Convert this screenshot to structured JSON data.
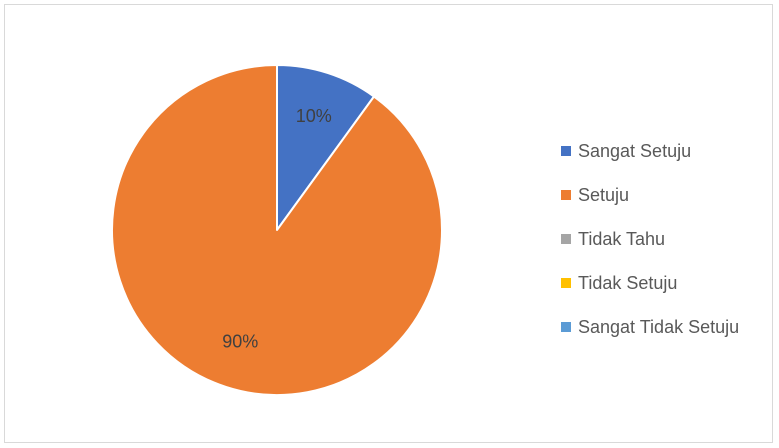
{
  "chart_data": {
    "type": "pie",
    "categories": [
      "Sangat Setuju",
      "Setuju",
      "Tidak Tahu",
      "Tidak Setuju",
      "Sangat Tidak Setuju"
    ],
    "values": [
      10,
      90,
      0,
      0,
      0
    ],
    "data_labels": [
      "10%",
      "90%",
      "",
      "",
      ""
    ],
    "colors": [
      "#4472C4",
      "#ED7D31",
      "#A5A5A5",
      "#FFC000",
      "#5B9BD5"
    ],
    "legend_position": "right"
  },
  "legend": {
    "items": [
      {
        "label": "Sangat Setuju",
        "color": "#4472C4"
      },
      {
        "label": "Setuju",
        "color": "#ED7D31"
      },
      {
        "label": "Tidak Tahu",
        "color": "#A5A5A5"
      },
      {
        "label": "Tidak Setuju",
        "color": "#FFC000"
      },
      {
        "label": "Sangat Tidak Setuju",
        "color": "#5B9BD5"
      }
    ]
  }
}
